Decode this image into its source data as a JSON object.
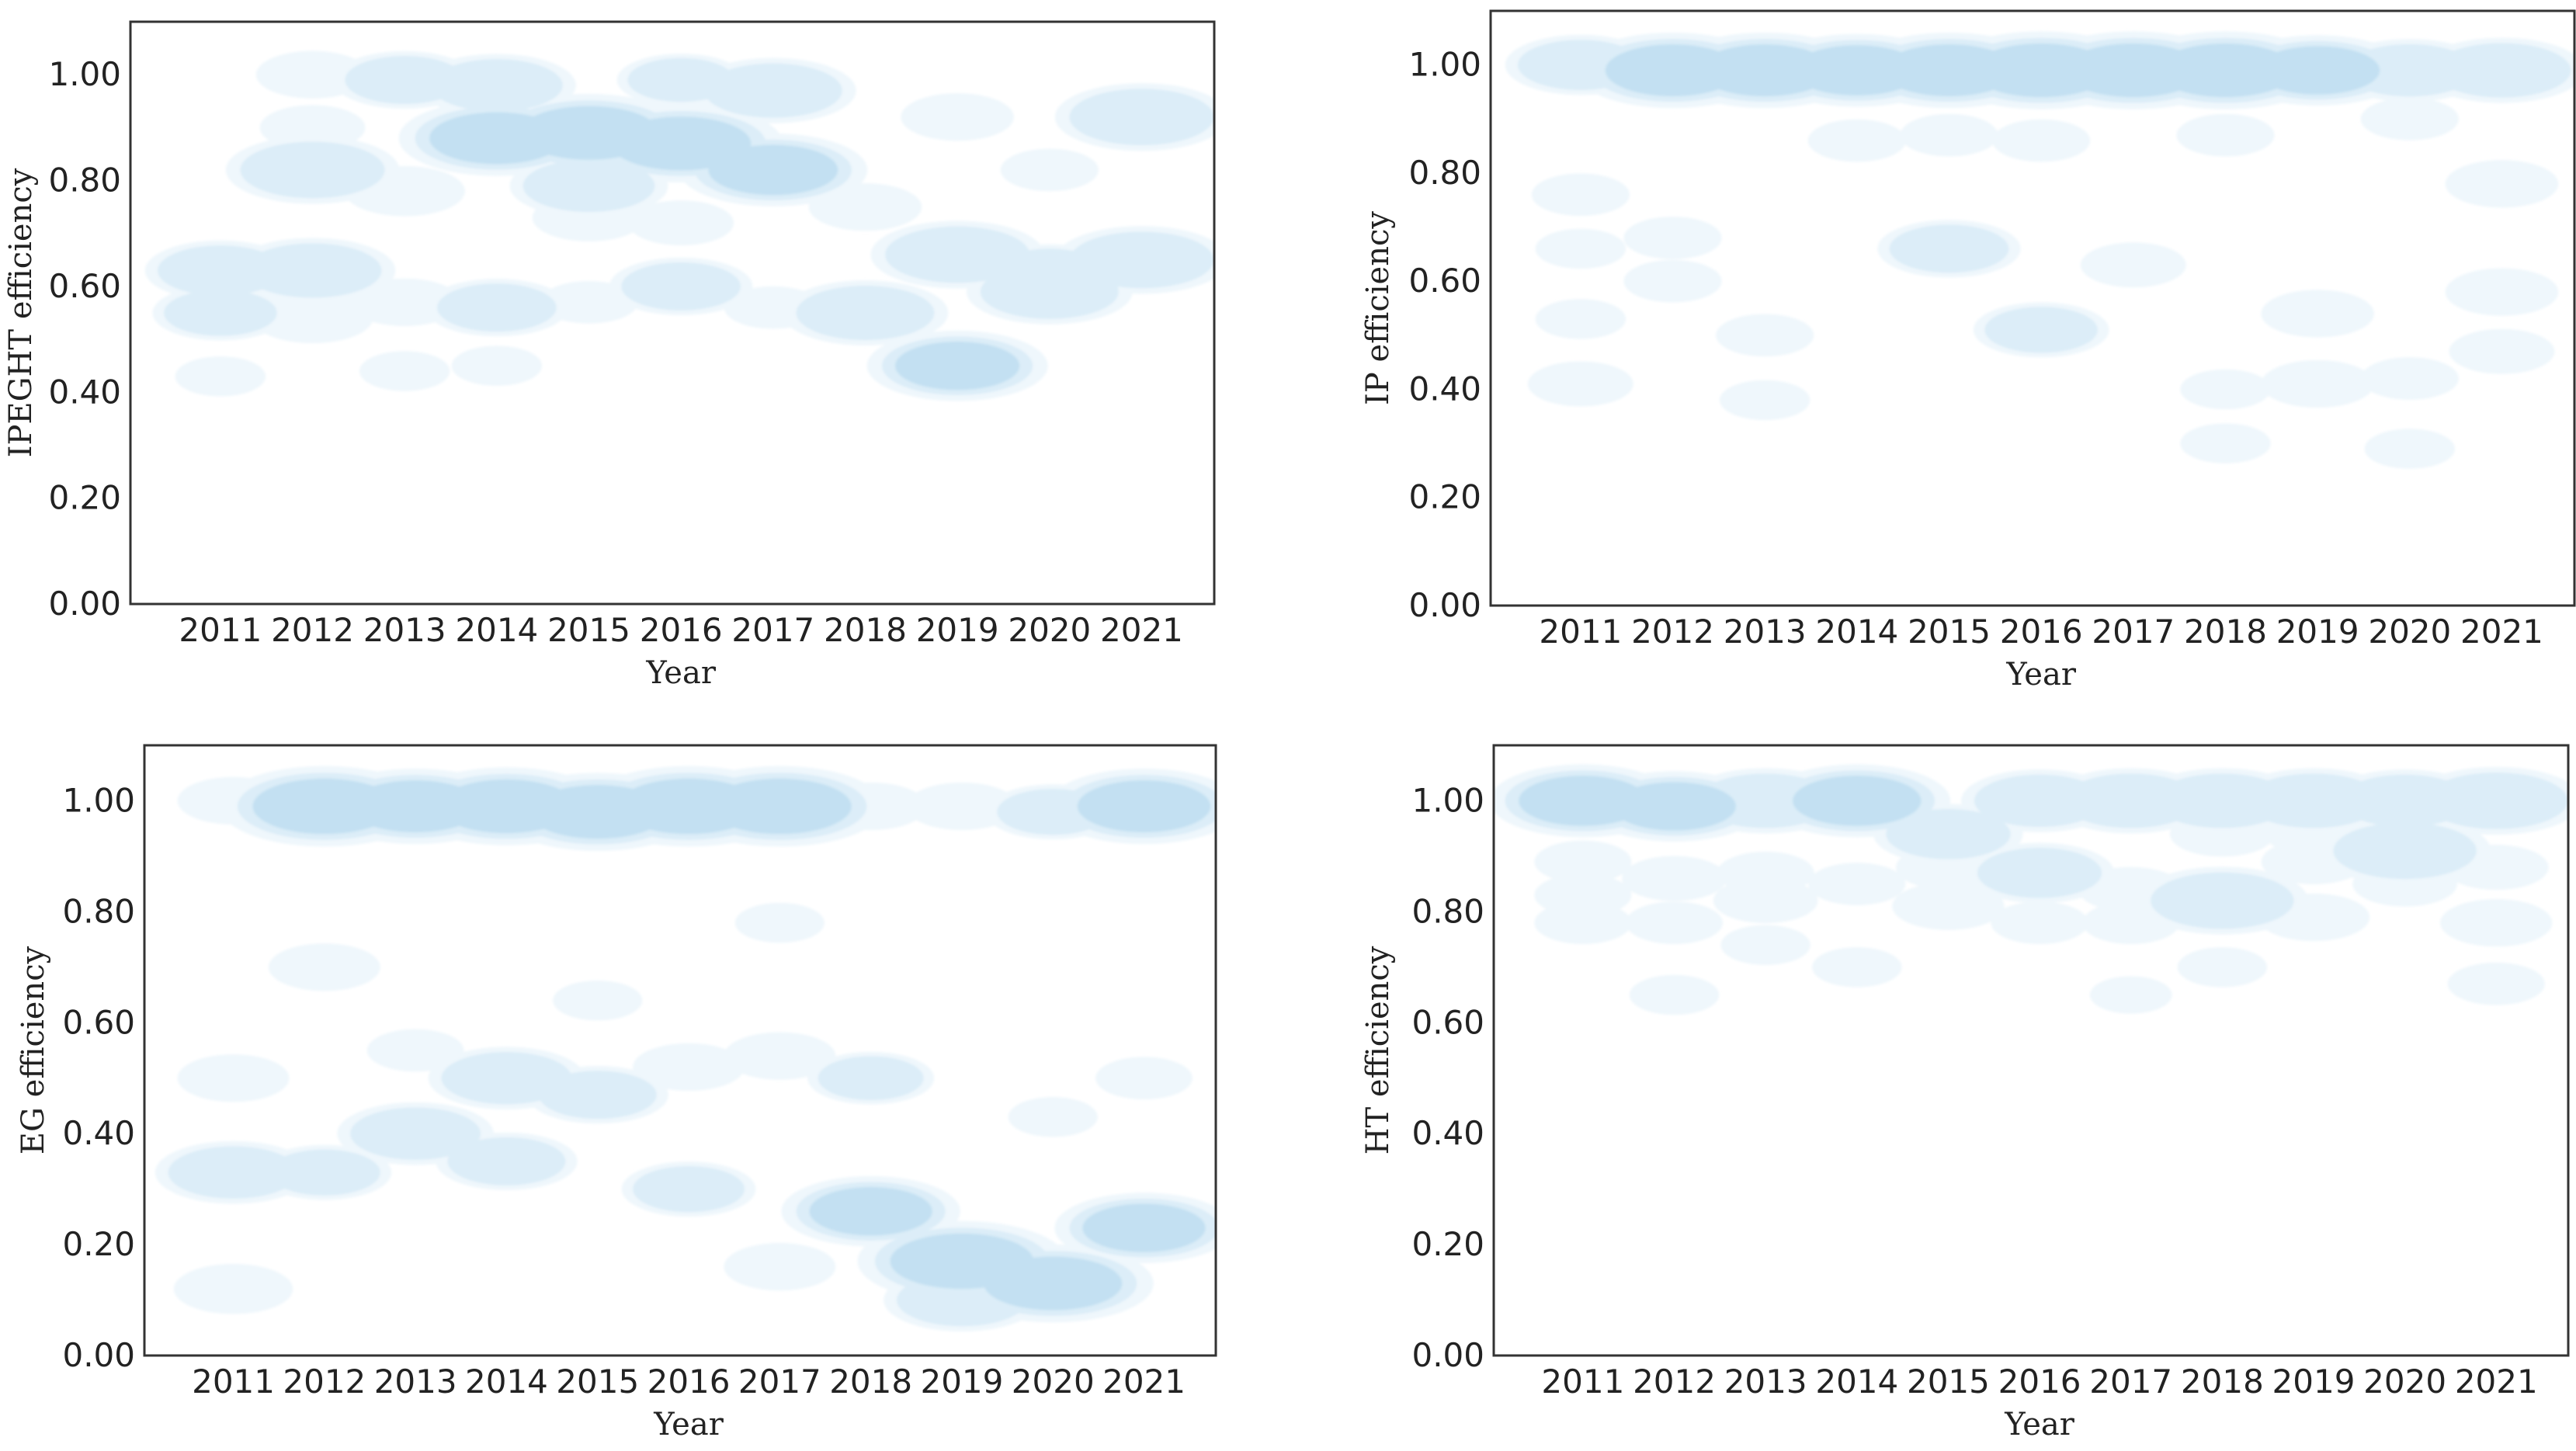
{
  "colors": {
    "palette": [
      "#eff7fc",
      "#dcedf8",
      "#c3e0f2",
      "#a1cfe9",
      "#6fb6dc",
      "#3ea3d6",
      "#0a90c8",
      "#006db5"
    ],
    "background": "#ffffff",
    "frame": "#333333"
  },
  "chart_data": [
    {
      "type": "heatmap",
      "kind": "kde-density",
      "panel": "top-left",
      "title": "",
      "xlabel": "Year",
      "ylabel": "IPEGHT efficiency",
      "x": [
        "2011",
        "2012",
        "2013",
        "2014",
        "2015",
        "2016",
        "2017",
        "2018",
        "2019",
        "2020",
        "2021"
      ],
      "yticks": [
        "0.00",
        "0.20",
        "0.40",
        "0.60",
        "0.80",
        "1.00"
      ],
      "ylim": [
        0,
        1.1
      ],
      "grid": false,
      "blobs": [
        {
          "x": 2011,
          "y": 0.43,
          "w": 0.15
        },
        {
          "x": 2011,
          "y": 0.55,
          "w": 0.45
        },
        {
          "x": 2011,
          "y": 0.63,
          "w": 0.55
        },
        {
          "x": 2012,
          "y": 0.63,
          "w": 0.65
        },
        {
          "x": 2012,
          "y": 0.54,
          "w": 0.35
        },
        {
          "x": 2012,
          "y": 0.82,
          "w": 0.7
        },
        {
          "x": 2012,
          "y": 0.9,
          "w": 0.25
        },
        {
          "x": 2012,
          "y": 1.0,
          "w": 0.3
        },
        {
          "x": 2013,
          "y": 0.78,
          "w": 0.35
        },
        {
          "x": 2013,
          "y": 0.57,
          "w": 0.3
        },
        {
          "x": 2013,
          "y": 0.44,
          "w": 0.15
        },
        {
          "x": 2013,
          "y": 0.99,
          "w": 0.5
        },
        {
          "x": 2014,
          "y": 0.88,
          "w": 0.85
        },
        {
          "x": 2014,
          "y": 0.56,
          "w": 0.5
        },
        {
          "x": 2014,
          "y": 0.98,
          "w": 0.6
        },
        {
          "x": 2014,
          "y": 0.45,
          "w": 0.15
        },
        {
          "x": 2015,
          "y": 0.89,
          "w": 0.9
        },
        {
          "x": 2015,
          "y": 0.79,
          "w": 0.6
        },
        {
          "x": 2015,
          "y": 0.73,
          "w": 0.3
        },
        {
          "x": 2015,
          "y": 0.57,
          "w": 0.2
        },
        {
          "x": 2016,
          "y": 0.87,
          "w": 0.9
        },
        {
          "x": 2016,
          "y": 0.6,
          "w": 0.5
        },
        {
          "x": 2016,
          "y": 0.99,
          "w": 0.4
        },
        {
          "x": 2016,
          "y": 0.72,
          "w": 0.25
        },
        {
          "x": 2017,
          "y": 0.82,
          "w": 0.8
        },
        {
          "x": 2017,
          "y": 0.97,
          "w": 0.65
        },
        {
          "x": 2017,
          "y": 0.56,
          "w": 0.2
        },
        {
          "x": 2018,
          "y": 0.55,
          "w": 0.65
        },
        {
          "x": 2018,
          "y": 0.75,
          "w": 0.3
        },
        {
          "x": 2019,
          "y": 0.66,
          "w": 0.7
        },
        {
          "x": 2019,
          "y": 0.45,
          "w": 0.75
        },
        {
          "x": 2019,
          "y": 0.92,
          "w": 0.3
        },
        {
          "x": 2020,
          "y": 0.59,
          "w": 0.65
        },
        {
          "x": 2020,
          "y": 0.63,
          "w": 0.4
        },
        {
          "x": 2020,
          "y": 0.82,
          "w": 0.2
        },
        {
          "x": 2021,
          "y": 0.92,
          "w": 0.7
        },
        {
          "x": 2021,
          "y": 0.65,
          "w": 0.7
        }
      ]
    },
    {
      "type": "heatmap",
      "kind": "kde-density",
      "panel": "top-right",
      "title": "",
      "xlabel": "Year",
      "ylabel": "IP efficiency",
      "x": [
        "2011",
        "2012",
        "2013",
        "2014",
        "2015",
        "2016",
        "2017",
        "2018",
        "2019",
        "2020",
        "2021"
      ],
      "yticks": [
        "0.00",
        "0.20",
        "0.40",
        "0.60",
        "0.80",
        "1.00"
      ],
      "ylim": [
        0,
        1.1
      ],
      "grid": false,
      "blobs": [
        {
          "x": 2011,
          "y": 1.0,
          "w": 0.55
        },
        {
          "x": 2012,
          "y": 0.99,
          "w": 0.85
        },
        {
          "x": 2013,
          "y": 0.99,
          "w": 0.85
        },
        {
          "x": 2014,
          "y": 0.99,
          "w": 0.8
        },
        {
          "x": 2015,
          "y": 0.99,
          "w": 0.85
        },
        {
          "x": 2016,
          "y": 0.99,
          "w": 0.9
        },
        {
          "x": 2017,
          "y": 0.99,
          "w": 0.9
        },
        {
          "x": 2018,
          "y": 0.99,
          "w": 0.9
        },
        {
          "x": 2019,
          "y": 0.99,
          "w": 0.75
        },
        {
          "x": 2020,
          "y": 0.99,
          "w": 0.6
        },
        {
          "x": 2021,
          "y": 0.99,
          "w": 0.65
        },
        {
          "x": 2011,
          "y": 0.76,
          "w": 0.2
        },
        {
          "x": 2011,
          "y": 0.66,
          "w": 0.15
        },
        {
          "x": 2011,
          "y": 0.53,
          "w": 0.15
        },
        {
          "x": 2011,
          "y": 0.41,
          "w": 0.25
        },
        {
          "x": 2012,
          "y": 0.68,
          "w": 0.2
        },
        {
          "x": 2012,
          "y": 0.6,
          "w": 0.2
        },
        {
          "x": 2013,
          "y": 0.5,
          "w": 0.2
        },
        {
          "x": 2013,
          "y": 0.38,
          "w": 0.15
        },
        {
          "x": 2014,
          "y": 0.86,
          "w": 0.2
        },
        {
          "x": 2015,
          "y": 0.66,
          "w": 0.5
        },
        {
          "x": 2015,
          "y": 0.87,
          "w": 0.2
        },
        {
          "x": 2016,
          "y": 0.51,
          "w": 0.45
        },
        {
          "x": 2016,
          "y": 0.86,
          "w": 0.2
        },
        {
          "x": 2017,
          "y": 0.63,
          "w": 0.25
        },
        {
          "x": 2018,
          "y": 0.87,
          "w": 0.2
        },
        {
          "x": 2018,
          "y": 0.4,
          "w": 0.15
        },
        {
          "x": 2018,
          "y": 0.3,
          "w": 0.15
        },
        {
          "x": 2019,
          "y": 0.54,
          "w": 0.3
        },
        {
          "x": 2019,
          "y": 0.41,
          "w": 0.3
        },
        {
          "x": 2020,
          "y": 0.9,
          "w": 0.2
        },
        {
          "x": 2020,
          "y": 0.42,
          "w": 0.2
        },
        {
          "x": 2020,
          "y": 0.29,
          "w": 0.15
        },
        {
          "x": 2021,
          "y": 0.78,
          "w": 0.3
        },
        {
          "x": 2021,
          "y": 0.58,
          "w": 0.3
        },
        {
          "x": 2021,
          "y": 0.47,
          "w": 0.25
        }
      ]
    },
    {
      "type": "heatmap",
      "kind": "kde-density",
      "panel": "bottom-left",
      "title": "",
      "xlabel": "Year",
      "ylabel": "EG efficiency",
      "x": [
        "2011",
        "2012",
        "2013",
        "2014",
        "2015",
        "2016",
        "2017",
        "2018",
        "2019",
        "2020",
        "2021"
      ],
      "yticks": [
        "0.00",
        "0.20",
        "0.40",
        "0.60",
        "0.80",
        "1.00"
      ],
      "ylim": [
        0,
        1.1
      ],
      "grid": false,
      "blobs": [
        {
          "x": 2011,
          "y": 1.0,
          "w": 0.3
        },
        {
          "x": 2012,
          "y": 0.99,
          "w": 0.95
        },
        {
          "x": 2013,
          "y": 0.99,
          "w": 0.85
        },
        {
          "x": 2014,
          "y": 0.99,
          "w": 0.9
        },
        {
          "x": 2015,
          "y": 0.98,
          "w": 0.9
        },
        {
          "x": 2016,
          "y": 0.99,
          "w": 0.95
        },
        {
          "x": 2017,
          "y": 0.99,
          "w": 0.95
        },
        {
          "x": 2018,
          "y": 0.99,
          "w": 0.3
        },
        {
          "x": 2019,
          "y": 0.99,
          "w": 0.3
        },
        {
          "x": 2020,
          "y": 0.98,
          "w": 0.45
        },
        {
          "x": 2021,
          "y": 0.99,
          "w": 0.85
        },
        {
          "x": 2011,
          "y": 0.5,
          "w": 0.3
        },
        {
          "x": 2011,
          "y": 0.33,
          "w": 0.6
        },
        {
          "x": 2011,
          "y": 0.12,
          "w": 0.35
        },
        {
          "x": 2012,
          "y": 0.7,
          "w": 0.3
        },
        {
          "x": 2012,
          "y": 0.33,
          "w": 0.45
        },
        {
          "x": 2013,
          "y": 0.4,
          "w": 0.6
        },
        {
          "x": 2013,
          "y": 0.55,
          "w": 0.2
        },
        {
          "x": 2014,
          "y": 0.5,
          "w": 0.6
        },
        {
          "x": 2014,
          "y": 0.35,
          "w": 0.5
        },
        {
          "x": 2015,
          "y": 0.47,
          "w": 0.5
        },
        {
          "x": 2015,
          "y": 0.64,
          "w": 0.15
        },
        {
          "x": 2016,
          "y": 0.3,
          "w": 0.45
        },
        {
          "x": 2016,
          "y": 0.52,
          "w": 0.3
        },
        {
          "x": 2017,
          "y": 0.54,
          "w": 0.3
        },
        {
          "x": 2017,
          "y": 0.16,
          "w": 0.3
        },
        {
          "x": 2017,
          "y": 0.78,
          "w": 0.15
        },
        {
          "x": 2018,
          "y": 0.5,
          "w": 0.4
        },
        {
          "x": 2018,
          "y": 0.26,
          "w": 0.75
        },
        {
          "x": 2019,
          "y": 0.17,
          "w": 0.95
        },
        {
          "x": 2019,
          "y": 0.1,
          "w": 0.6
        },
        {
          "x": 2020,
          "y": 0.13,
          "w": 0.9
        },
        {
          "x": 2020,
          "y": 0.43,
          "w": 0.15
        },
        {
          "x": 2021,
          "y": 0.23,
          "w": 0.75
        },
        {
          "x": 2021,
          "y": 0.5,
          "w": 0.2
        }
      ]
    },
    {
      "type": "heatmap",
      "kind": "kde-density",
      "panel": "bottom-right",
      "title": "",
      "xlabel": "Year",
      "ylabel": "HT efficiency",
      "x": [
        "2011",
        "2012",
        "2013",
        "2014",
        "2015",
        "2016",
        "2017",
        "2018",
        "2019",
        "2020",
        "2021"
      ],
      "yticks": [
        "0.00",
        "0.20",
        "0.40",
        "0.60",
        "0.80",
        "1.00"
      ],
      "ylim": [
        0,
        1.1
      ],
      "grid": false,
      "blobs": [
        {
          "x": 2011,
          "y": 1.0,
          "w": 0.8
        },
        {
          "x": 2012,
          "y": 0.99,
          "w": 0.75
        },
        {
          "x": 2013,
          "y": 1.0,
          "w": 0.65
        },
        {
          "x": 2014,
          "y": 1.0,
          "w": 0.8
        },
        {
          "x": 2016,
          "y": 1.0,
          "w": 0.6
        },
        {
          "x": 2017,
          "y": 1.0,
          "w": 0.65
        },
        {
          "x": 2018,
          "y": 1.0,
          "w": 0.65
        },
        {
          "x": 2019,
          "y": 1.0,
          "w": 0.65
        },
        {
          "x": 2020,
          "y": 1.0,
          "w": 0.6
        },
        {
          "x": 2021,
          "y": 1.0,
          "w": 0.7
        },
        {
          "x": 2011,
          "y": 0.89,
          "w": 0.2
        },
        {
          "x": 2011,
          "y": 0.83,
          "w": 0.2
        },
        {
          "x": 2011,
          "y": 0.78,
          "w": 0.2
        },
        {
          "x": 2012,
          "y": 0.86,
          "w": 0.25
        },
        {
          "x": 2012,
          "y": 0.78,
          "w": 0.2
        },
        {
          "x": 2012,
          "y": 0.65,
          "w": 0.15
        },
        {
          "x": 2013,
          "y": 0.82,
          "w": 0.25
        },
        {
          "x": 2013,
          "y": 0.87,
          "w": 0.2
        },
        {
          "x": 2013,
          "y": 0.74,
          "w": 0.15
        },
        {
          "x": 2014,
          "y": 0.7,
          "w": 0.15
        },
        {
          "x": 2014,
          "y": 0.85,
          "w": 0.2
        },
        {
          "x": 2015,
          "y": 0.94,
          "w": 0.55
        },
        {
          "x": 2015,
          "y": 0.81,
          "w": 0.3
        },
        {
          "x": 2015,
          "y": 0.88,
          "w": 0.25
        },
        {
          "x": 2016,
          "y": 0.87,
          "w": 0.55
        },
        {
          "x": 2016,
          "y": 0.78,
          "w": 0.2
        },
        {
          "x": 2017,
          "y": 0.84,
          "w": 0.25
        },
        {
          "x": 2017,
          "y": 0.78,
          "w": 0.2
        },
        {
          "x": 2017,
          "y": 0.65,
          "w": 0.1
        },
        {
          "x": 2018,
          "y": 0.82,
          "w": 0.7
        },
        {
          "x": 2018,
          "y": 0.94,
          "w": 0.25
        },
        {
          "x": 2018,
          "y": 0.7,
          "w": 0.15
        },
        {
          "x": 2019,
          "y": 0.79,
          "w": 0.3
        },
        {
          "x": 2019,
          "y": 0.89,
          "w": 0.25
        },
        {
          "x": 2019,
          "y": 0.94,
          "w": 0.2
        },
        {
          "x": 2020,
          "y": 0.91,
          "w": 0.7
        },
        {
          "x": 2020,
          "y": 0.85,
          "w": 0.25
        },
        {
          "x": 2021,
          "y": 0.78,
          "w": 0.3
        },
        {
          "x": 2021,
          "y": 0.88,
          "w": 0.25
        },
        {
          "x": 2021,
          "y": 0.67,
          "w": 0.2
        }
      ]
    }
  ]
}
